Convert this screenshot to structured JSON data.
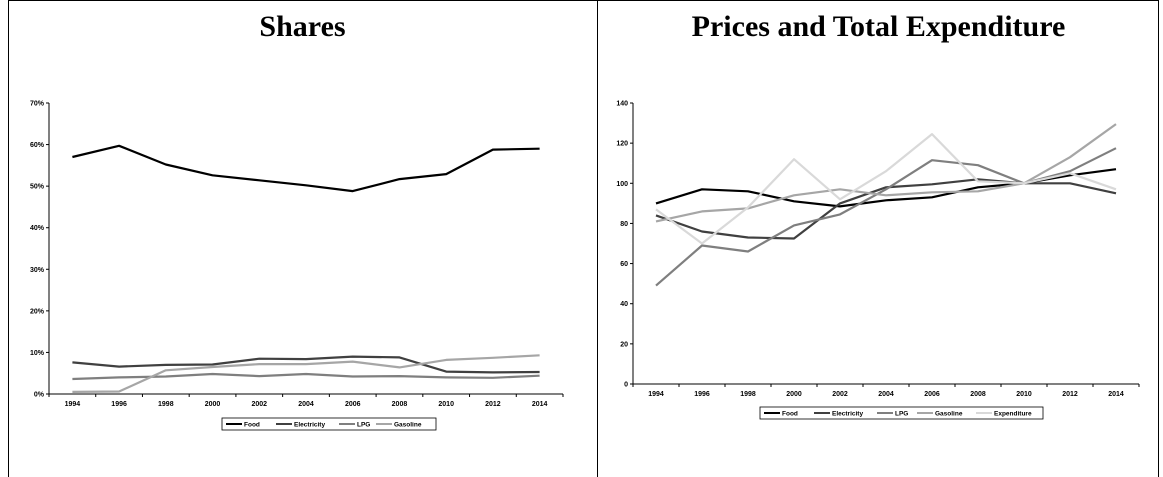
{
  "chart_data": [
    {
      "type": "line",
      "title": "Shares",
      "x": [
        1994,
        1996,
        1998,
        2000,
        2002,
        2004,
        2006,
        2008,
        2010,
        2012,
        2014
      ],
      "ylim": [
        0,
        70
      ],
      "yticks": [
        "0%",
        "10%",
        "20%",
        "30%",
        "40%",
        "50%",
        "60%",
        "70%"
      ],
      "ytick_values": [
        0,
        10,
        20,
        30,
        40,
        50,
        60,
        70
      ],
      "grid": false,
      "legend": "bottom",
      "series": [
        {
          "name": "Food",
          "color": "#000000",
          "values": [
            57.0,
            59.7,
            55.2,
            52.6,
            51.4,
            50.2,
            48.8,
            51.7,
            52.9,
            58.8,
            59.0
          ]
        },
        {
          "name": "Electricity",
          "color": "#404040",
          "values": [
            7.6,
            6.6,
            7.0,
            7.1,
            8.5,
            8.4,
            9.0,
            8.8,
            5.4,
            5.2,
            5.3
          ]
        },
        {
          "name": "LPG",
          "color": "#7f7f7f",
          "values": [
            3.6,
            4.0,
            4.2,
            4.8,
            4.3,
            4.8,
            4.2,
            4.3,
            4.0,
            3.9,
            4.4
          ]
        },
        {
          "name": "Gasoline",
          "color": "#a6a6a6",
          "values": [
            0.5,
            0.6,
            5.7,
            6.5,
            7.2,
            7.2,
            7.8,
            6.4,
            8.2,
            8.7,
            9.3
          ]
        }
      ]
    },
    {
      "type": "line",
      "title": "Prices and Total Expenditure",
      "x": [
        1994,
        1996,
        1998,
        2000,
        2002,
        2004,
        2006,
        2008,
        2010,
        2012,
        2014
      ],
      "ylim": [
        0,
        140
      ],
      "yticks": [
        "0",
        "20",
        "40",
        "60",
        "80",
        "100",
        "120",
        "140"
      ],
      "ytick_values": [
        0,
        20,
        40,
        60,
        80,
        100,
        120,
        140
      ],
      "grid": false,
      "legend": "bottom",
      "series": [
        {
          "name": "Food",
          "color": "#000000",
          "values": [
            90,
            97,
            96,
            91,
            88.5,
            91.5,
            93,
            98,
            100,
            104,
            107
          ]
        },
        {
          "name": "Electricity",
          "color": "#404040",
          "values": [
            84,
            76,
            73,
            72.5,
            90,
            98,
            99.5,
            102,
            100,
            100,
            95
          ]
        },
        {
          "name": "LPG",
          "color": "#7f7f7f",
          "values": [
            49,
            69,
            66,
            79,
            84.5,
            97,
            111.5,
            109,
            100,
            106,
            117.5
          ]
        },
        {
          "name": "Gasoline",
          "color": "#a6a6a6",
          "values": [
            81,
            86,
            87.5,
            94,
            97,
            94,
            95.5,
            96,
            100,
            113,
            129.5
          ]
        },
        {
          "name": "Expenditure",
          "color": "#d9d9d9",
          "values": [
            87,
            70,
            88,
            112,
            92,
            106,
            124.5,
            101,
            100,
            105,
            97
          ]
        }
      ]
    }
  ]
}
